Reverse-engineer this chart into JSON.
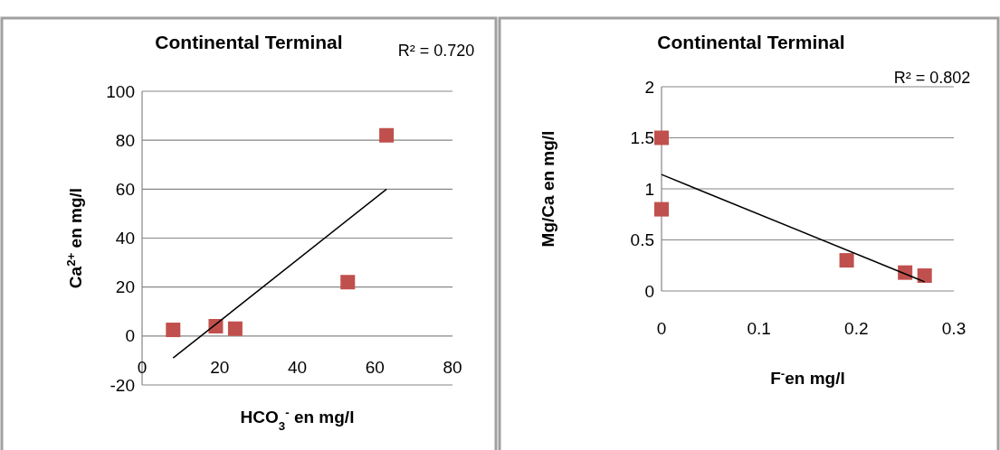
{
  "chart_data": [
    {
      "type": "scatter",
      "title": "Continental Terminal",
      "xlabel": "HCO$_{3}$$^{-}$ en mg/l",
      "ylabel": "Ca$^{2+}$ en mg/l",
      "annotations": [
        "R² = 0.720"
      ],
      "grid": "y",
      "xlim": [
        0,
        80
      ],
      "xticks": [
        0,
        20,
        40,
        60,
        80
      ],
      "ylim": [
        -20,
        100
      ],
      "yticks": [
        -20,
        0,
        20,
        40,
        60,
        80,
        100
      ],
      "series": [
        {
          "marker": "square",
          "color": "#c0504d",
          "x": [
            8,
            19,
            24,
            53,
            63
          ],
          "values": [
            2.5,
            4,
            3,
            22,
            82
          ]
        },
        {
          "type": "line",
          "marker": "none",
          "color": "#000000",
          "x": [
            8,
            63
          ],
          "values": [
            -9,
            60
          ]
        }
      ]
    },
    {
      "type": "scatter",
      "title": "Continental Terminal",
      "xlabel": "F$^{-}$en mg/l",
      "ylabel": "Mg/Ca en mg/l",
      "annotations": [
        "R² = 0.802"
      ],
      "grid": "y",
      "xlim": [
        0,
        0.3
      ],
      "xticks": [
        0,
        0.1,
        0.2,
        0.3
      ],
      "ylim": [
        0,
        2
      ],
      "yticks": [
        0,
        0.5,
        1,
        1.5,
        2
      ],
      "series": [
        {
          "marker": "square",
          "color": "#c0504d",
          "x": [
            0,
            0,
            0.19,
            0.25,
            0.27
          ],
          "values": [
            1.5,
            0.8,
            0.3,
            0.18,
            0.15
          ]
        },
        {
          "type": "line",
          "marker": "none",
          "color": "#000000",
          "x": [
            0,
            0.27
          ],
          "values": [
            1.14,
            0.09
          ]
        }
      ]
    }
  ]
}
